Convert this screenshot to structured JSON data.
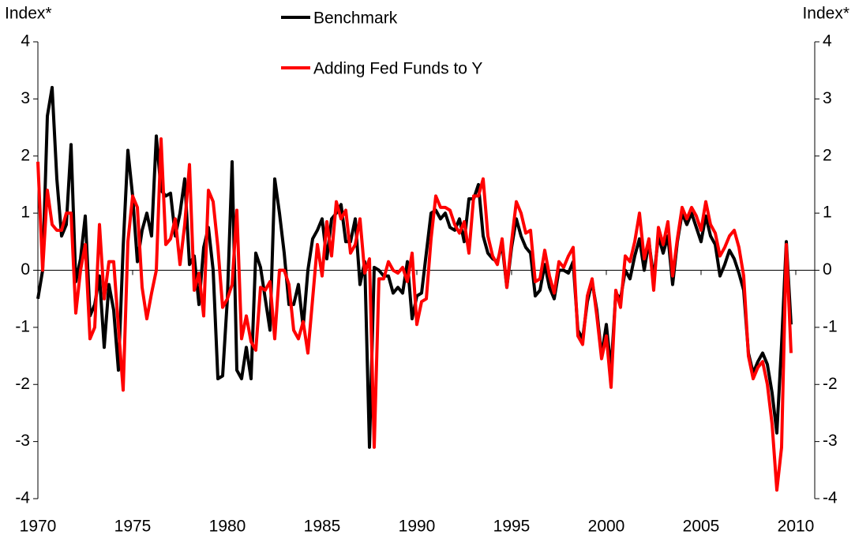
{
  "chart_data": {
    "type": "line",
    "y_label": "Index*",
    "y2_label": "Index*",
    "x": [
      1970,
      1970.25,
      1970.5,
      1970.75,
      1971,
      1971.25,
      1971.5,
      1971.75,
      1972,
      1972.25,
      1972.5,
      1972.75,
      1973,
      1973.25,
      1973.5,
      1973.75,
      1974,
      1974.25,
      1974.5,
      1974.75,
      1975,
      1975.25,
      1975.5,
      1975.75,
      1976,
      1976.25,
      1976.5,
      1976.75,
      1977,
      1977.25,
      1977.5,
      1977.75,
      1978,
      1978.25,
      1978.5,
      1978.75,
      1979,
      1979.25,
      1979.5,
      1979.75,
      1980,
      1980.25,
      1980.5,
      1980.75,
      1981,
      1981.25,
      1981.5,
      1981.75,
      1982,
      1982.25,
      1982.5,
      1982.75,
      1983,
      1983.25,
      1983.5,
      1983.75,
      1984,
      1984.25,
      1984.5,
      1984.75,
      1985,
      1985.25,
      1985.5,
      1985.75,
      1986,
      1986.25,
      1986.5,
      1986.75,
      1987,
      1987.25,
      1987.5,
      1987.75,
      1988,
      1988.25,
      1988.5,
      1988.75,
      1989,
      1989.25,
      1989.5,
      1989.75,
      1990,
      1990.25,
      1990.5,
      1990.75,
      1991,
      1991.25,
      1991.5,
      1991.75,
      1992,
      1992.25,
      1992.5,
      1992.75,
      1993,
      1993.25,
      1993.5,
      1993.75,
      1994,
      1994.25,
      1994.5,
      1994.75,
      1995,
      1995.25,
      1995.5,
      1995.75,
      1996,
      1996.25,
      1996.5,
      1996.75,
      1997,
      1997.25,
      1997.5,
      1997.75,
      1998,
      1998.25,
      1998.5,
      1998.75,
      1999,
      1999.25,
      1999.5,
      1999.75,
      2000,
      2000.25,
      2000.5,
      2000.75,
      2001,
      2001.25,
      2001.5,
      2001.75,
      2002,
      2002.25,
      2002.5,
      2002.75,
      2003,
      2003.25,
      2003.5,
      2003.75,
      2004,
      2004.25,
      2004.5,
      2004.75,
      2005,
      2005.25,
      2005.5,
      2005.75,
      2006,
      2006.25,
      2006.5,
      2006.75,
      2007,
      2007.25,
      2007.5,
      2007.75,
      2008,
      2008.25,
      2008.5,
      2008.75,
      2009,
      2009.25,
      2009.5,
      2009.75
    ],
    "series": [
      {
        "name": "Benchmark",
        "color": "#000000",
        "values": [
          -0.5,
          0.0,
          2.7,
          3.2,
          1.6,
          0.6,
          0.8,
          2.2,
          -0.2,
          0.2,
          0.95,
          -0.8,
          -0.6,
          -0.1,
          -1.35,
          -0.25,
          -0.7,
          -1.75,
          0.4,
          2.1,
          1.3,
          0.15,
          0.7,
          1.0,
          0.6,
          2.35,
          1.4,
          1.3,
          1.35,
          0.6,
          1.0,
          1.6,
          0.1,
          0.25,
          -0.6,
          0.4,
          0.75,
          0.0,
          -1.9,
          -1.85,
          -0.5,
          1.9,
          -1.75,
          -1.9,
          -1.35,
          -1.9,
          0.3,
          0.05,
          -0.5,
          -1.05,
          1.6,
          1.0,
          0.3,
          -0.6,
          -0.6,
          -0.25,
          -1.0,
          0.0,
          0.55,
          0.7,
          0.9,
          0.2,
          0.9,
          1.0,
          1.15,
          0.5,
          0.5,
          0.9,
          -0.25,
          0.15,
          -3.1,
          0.05,
          0.0,
          -0.1,
          -0.1,
          -0.4,
          -0.3,
          -0.4,
          0.15,
          -0.85,
          -0.45,
          -0.4,
          0.3,
          1.0,
          1.05,
          0.9,
          1.0,
          0.75,
          0.7,
          0.9,
          0.5,
          1.25,
          1.25,
          1.5,
          0.6,
          0.3,
          0.2,
          0.15,
          0.45,
          -0.3,
          0.4,
          0.9,
          0.6,
          0.4,
          0.3,
          -0.45,
          -0.35,
          0.1,
          -0.3,
          -0.5,
          0.0,
          0.0,
          -0.05,
          0.15,
          -1.05,
          -1.2,
          -0.55,
          -0.2,
          -0.7,
          -1.5,
          -0.95,
          -1.75,
          -0.4,
          -0.5,
          0.0,
          -0.15,
          0.25,
          0.55,
          0.0,
          0.5,
          -0.15,
          0.6,
          0.3,
          0.6,
          -0.25,
          0.5,
          1.0,
          0.8,
          1.0,
          0.75,
          0.5,
          0.95,
          0.6,
          0.45,
          -0.1,
          0.1,
          0.35,
          0.2,
          -0.05,
          -0.35,
          -1.45,
          -1.8,
          -1.6,
          -1.45,
          -1.65,
          -2.15,
          -2.85,
          -1.3,
          0.5,
          -0.95
        ]
      },
      {
        "name": "Adding Fed Funds to Y",
        "color": "#ff0000",
        "values": [
          1.9,
          0.0,
          1.4,
          0.8,
          0.7,
          0.7,
          1.0,
          1.0,
          -0.75,
          0.0,
          0.45,
          -1.2,
          -1.0,
          0.8,
          -0.5,
          0.15,
          0.15,
          -1.0,
          -2.1,
          0.5,
          1.3,
          1.1,
          -0.3,
          -0.85,
          -0.4,
          0.0,
          2.3,
          0.45,
          0.55,
          0.9,
          0.1,
          0.8,
          1.85,
          -0.35,
          -0.05,
          -0.8,
          1.4,
          1.2,
          0.4,
          -0.65,
          -0.5,
          -0.25,
          1.05,
          -1.2,
          -0.8,
          -1.25,
          -1.4,
          -0.3,
          -0.35,
          -0.2,
          -1.2,
          0.0,
          0.0,
          -0.25,
          -1.05,
          -1.2,
          -0.9,
          -1.45,
          -0.5,
          0.45,
          -0.1,
          0.85,
          0.25,
          1.2,
          0.9,
          1.05,
          0.3,
          0.45,
          0.9,
          -0.05,
          0.2,
          -3.1,
          -0.15,
          -0.15,
          0.15,
          0.0,
          -0.05,
          0.05,
          -0.2,
          0.3,
          -0.95,
          -0.55,
          -0.5,
          0.55,
          1.3,
          1.1,
          1.1,
          1.05,
          0.8,
          0.65,
          0.85,
          0.3,
          1.3,
          1.3,
          1.6,
          0.6,
          0.25,
          0.1,
          0.55,
          -0.3,
          0.5,
          1.2,
          1.0,
          0.65,
          0.7,
          -0.2,
          -0.15,
          0.35,
          -0.1,
          -0.4,
          0.15,
          0.05,
          0.25,
          0.4,
          -1.15,
          -1.3,
          -0.45,
          -0.15,
          -0.8,
          -1.55,
          -1.15,
          -2.05,
          -0.35,
          -0.65,
          0.25,
          0.15,
          0.5,
          1.0,
          0.2,
          0.55,
          -0.35,
          0.75,
          0.45,
          0.85,
          -0.1,
          0.55,
          1.1,
          0.9,
          1.1,
          0.95,
          0.7,
          1.2,
          0.8,
          0.65,
          0.25,
          0.4,
          0.6,
          0.7,
          0.4,
          -0.1,
          -1.5,
          -1.9,
          -1.7,
          -1.6,
          -2.0,
          -2.7,
          -3.85,
          -3.1,
          0.45,
          -1.45
        ]
      }
    ],
    "xlim": [
      1970,
      2011
    ],
    "xticks": [
      1970,
      1975,
      1980,
      1985,
      1990,
      1995,
      2000,
      2005,
      2010
    ],
    "ylim": [
      -4,
      4
    ],
    "yticks": [
      -4,
      -3,
      -2,
      -1,
      0,
      1,
      2,
      3,
      4
    ],
    "y2lim": [
      -4,
      4
    ],
    "y2ticks": [
      -4,
      -3,
      -2,
      -1,
      0,
      1,
      2,
      3,
      4
    ],
    "grid": false
  }
}
